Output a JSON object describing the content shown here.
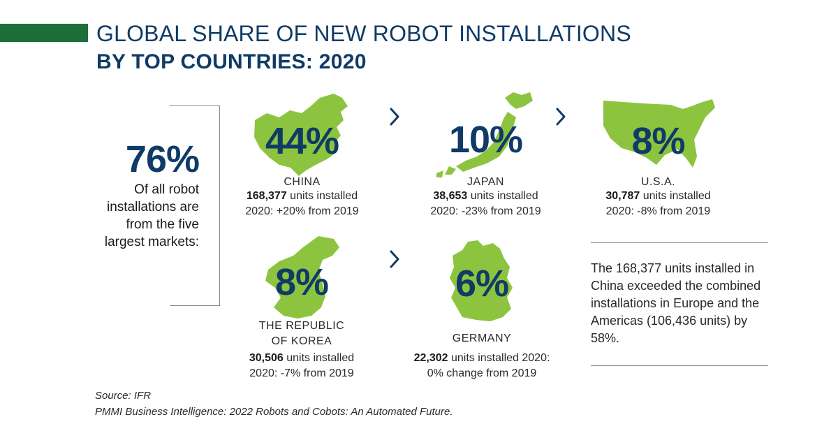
{
  "chart_data": {
    "type": "infographic",
    "title": "GLOBAL SHARE OF NEW ROBOT INSTALLATIONS",
    "subtitle": "BY TOP COUNTRIES: 2020",
    "summary": {
      "value": "76%",
      "text": "Of all robot installations are from the five largest markets:"
    },
    "countries": [
      {
        "name": "CHINA",
        "share": "44%",
        "units": "168,377",
        "units_suffix": " units installed",
        "change": "2020: +20% from 2019"
      },
      {
        "name": "JAPAN",
        "share": "10%",
        "units": "38,653",
        "units_suffix": " units installed",
        "change": "2020: -23% from 2019"
      },
      {
        "name": "U.S.A.",
        "share": "8%",
        "units": "30,787",
        "units_suffix": " units installed",
        "change": "2020: -8% from 2019"
      },
      {
        "name_line1": "THE REPUBLIC",
        "name_line2": "OF KOREA",
        "share": "8%",
        "units": "30,506",
        "units_suffix": " units installed",
        "change": "2020: -7% from 2019"
      },
      {
        "name": "GERMANY",
        "share": "6%",
        "units": "22,302",
        "units_suffix": " units installed 2020:",
        "change": "0% change from 2019"
      }
    ],
    "note": "The 168,377 units installed in China exceeded the combined installations in Europe and the Americas (106,436 units) by 58%.",
    "source_line1": "Source: IFR",
    "source_line2": "PMMI Business Intelligence: 2022 Robots and Cobots: An Automated Future.",
    "colors": {
      "map": "#8dc43f",
      "accent": "#1e6e3a",
      "text_primary": "#0f3b66"
    },
    "icons": [
      "chevron-right-icon"
    ]
  }
}
